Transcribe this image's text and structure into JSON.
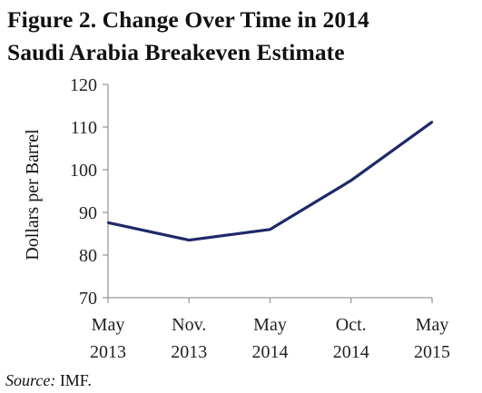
{
  "title_line1": "Figure 2. Change Over Time in 2014",
  "title_line2": "Saudi Arabia Breakeven Estimate",
  "source_label": "Source:",
  "source_value": " IMF.",
  "line_color": "#1f2868",
  "chart_data": {
    "type": "line",
    "title": "Figure 2. Change Over Time in 2014 Saudi Arabia Breakeven Estimate",
    "ylabel": "Dollars per Barrel",
    "xlabel": "",
    "ylim": [
      70,
      120
    ],
    "yticks": [
      70,
      80,
      90,
      100,
      110,
      120
    ],
    "categories": [
      [
        "May",
        "2013"
      ],
      [
        "Nov.",
        "2013"
      ],
      [
        "May",
        "2014"
      ],
      [
        "Oct.",
        "2014"
      ],
      [
        "May",
        "2015"
      ]
    ],
    "values": [
      87.6,
      83.5,
      86.0,
      97.5,
      111.2
    ],
    "grid": false,
    "legend": "none"
  }
}
